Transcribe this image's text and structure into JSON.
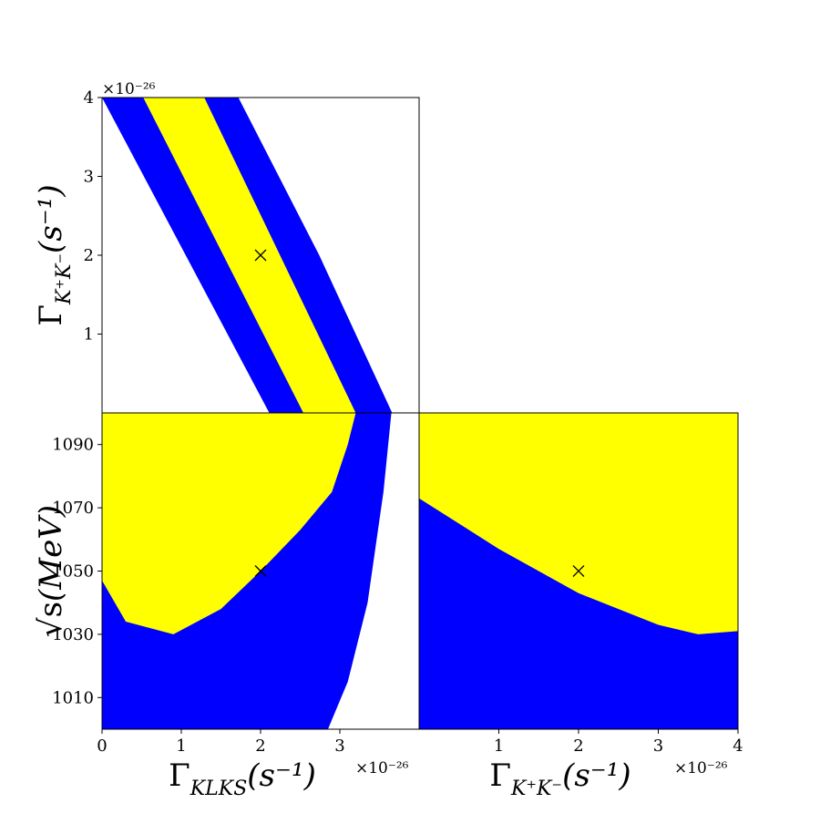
{
  "chart_data": [
    {
      "type": "region",
      "ylabel": {
        "symbol": "Γ",
        "subscript": "K⁺K⁻",
        "unit": "(s⁻¹)"
      },
      "offset_label": "×10⁻²⁶",
      "xlim": [
        0,
        4
      ],
      "ylim": [
        0,
        4
      ],
      "yticks": [
        1,
        2,
        3,
        4
      ],
      "regions": [
        {
          "color": "#0000ff",
          "x": [
            0,
            1.72,
            2.74,
            3.66,
            2.11
          ],
          "y": [
            4,
            4,
            2,
            0,
            0
          ]
        },
        {
          "color": "#ffff00",
          "x": [
            0.52,
            1.29,
            3.2,
            2.54
          ],
          "y": [
            4,
            4,
            0,
            0
          ]
        }
      ],
      "marker": {
        "x": 2,
        "y": 2
      }
    },
    {
      "type": "region",
      "ylabel": {
        "symbol": "√s",
        "subscript": "",
        "unit": "(MeV)"
      },
      "xlabel": {
        "symbol": "Γ",
        "subscript": "KLKS",
        "unit": "(s⁻¹)"
      },
      "offset_label": "×10⁻²⁶",
      "xlim": [
        0,
        4
      ],
      "ylim": [
        1000,
        1100
      ],
      "xticks": [
        0,
        1,
        2,
        3
      ],
      "yticks": [
        1010,
        1030,
        1050,
        1070,
        1090
      ],
      "regions": [
        {
          "color": "#0000ff",
          "x": [
            0,
            3.65,
            3.55,
            3.35,
            3.1,
            2.85,
            0
          ],
          "y": [
            1100,
            1100,
            1075,
            1040,
            1015,
            1000,
            1000
          ]
        },
        {
          "color": "#ffff00",
          "x": [
            0,
            0,
            0.3,
            0.9,
            1.5,
            2,
            2.5,
            2.9,
            3.1,
            3.2
          ],
          "y": [
            1100,
            1047,
            1034,
            1030,
            1038,
            1050,
            1063,
            1075,
            1090,
            1100
          ]
        }
      ],
      "marker": {
        "x": 2,
        "y": 1050
      }
    },
    {
      "type": "region",
      "xlabel": {
        "symbol": "Γ",
        "subscript": "K⁺K⁻",
        "unit": "(s⁻¹)"
      },
      "offset_label": "×10⁻²⁶",
      "background": "#ffff00",
      "xlim": [
        0,
        4
      ],
      "ylim": [
        1000,
        1100
      ],
      "xticks": [
        1,
        2,
        3,
        4
      ],
      "regions": [
        {
          "color": "#0000ff",
          "x": [
            0,
            0,
            1,
            2,
            3,
            3.5,
            4,
            4
          ],
          "y": [
            1000,
            1073,
            1057,
            1043,
            1033,
            1030,
            1031,
            1000
          ]
        }
      ],
      "marker": {
        "x": 2,
        "y": 1050
      }
    }
  ]
}
